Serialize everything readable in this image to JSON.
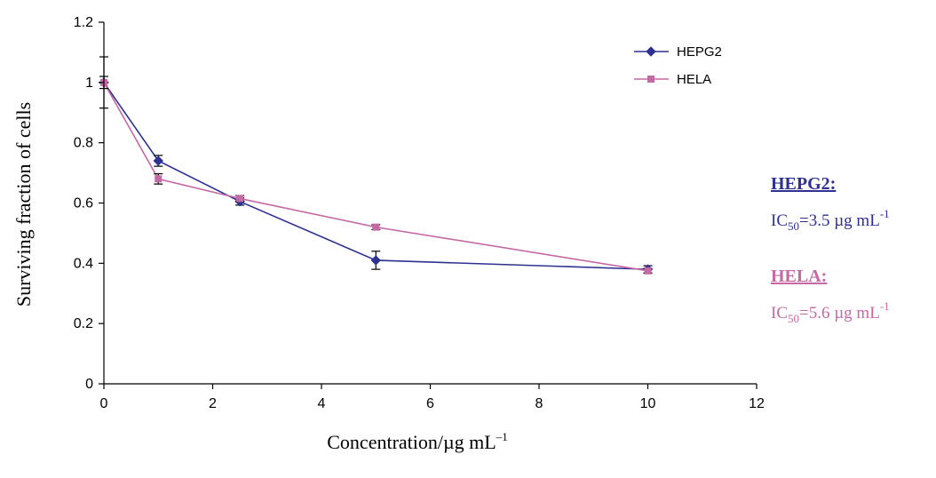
{
  "chart_data": {
    "type": "line",
    "xlabel": "Concentration/µg mL",
    "xlabel_sup": "–1",
    "ylabel": "Surviving fraction of cells",
    "xlim": [
      0,
      12
    ],
    "ylim": [
      0,
      1.2
    ],
    "xticks": [
      "0",
      "2",
      "4",
      "6",
      "8",
      "10",
      "12"
    ],
    "yticks": [
      "0",
      "0.2",
      "0.4",
      "0.6",
      "0.8",
      "1",
      "1.2"
    ],
    "legend_position": "top-right",
    "grid": false,
    "series": [
      {
        "name": "HEPG2",
        "color": "#2e3192",
        "marker": "diamond",
        "x": [
          0,
          1,
          2.5,
          5,
          10
        ],
        "y": [
          1.0,
          0.74,
          0.605,
          0.41,
          0.38
        ],
        "err": [
          0.085,
          0.018,
          0.012,
          0.03,
          0.012
        ]
      },
      {
        "name": "HELA",
        "color": "#c569a4",
        "marker": "square",
        "x": [
          0,
          1,
          2.5,
          5,
          10
        ],
        "y": [
          1.0,
          0.68,
          0.615,
          0.52,
          0.375
        ],
        "err": [
          0.02,
          0.017,
          0.01,
          0.008,
          0.008
        ]
      }
    ]
  },
  "annotations": [
    {
      "title": "HEPG2:",
      "ic_prefix": "IC",
      "ic_sub": "50",
      "ic_value": "=3.5 µg mL",
      "ic_sup": "-1",
      "color": "#2e3192"
    },
    {
      "title": "HELA:",
      "ic_prefix": "IC",
      "ic_sub": "50",
      "ic_value": "=5.6 µg mL",
      "ic_sup": "-1",
      "color": "#c569a4"
    }
  ]
}
